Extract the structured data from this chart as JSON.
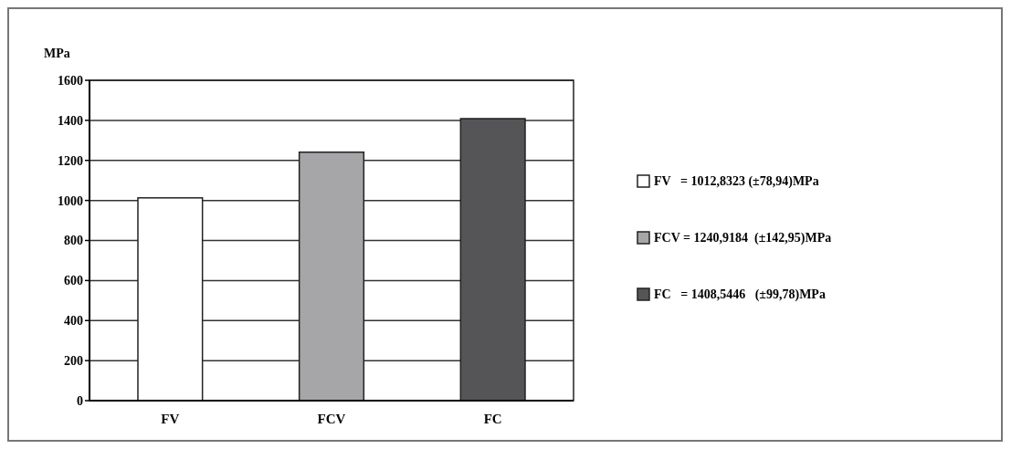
{
  "chart_data": {
    "type": "bar",
    "ylabel": "MPa",
    "categories": [
      "FV",
      "FCV",
      "FC"
    ],
    "series": [
      {
        "name": "FV   = 1012,8323 (±78,94)MPa",
        "color": "#ffffff",
        "values": [
          1012.8323,
          null,
          null
        ]
      },
      {
        "name": "FCV = 1240,9184  (±142,95)MPa",
        "color": "#a6a6a8",
        "values": [
          null,
          1240.9184,
          null
        ]
      },
      {
        "name": "FC   = 1408,5446   (±99,78)MPa",
        "color": "#555557",
        "values": [
          null,
          null,
          1408.5446
        ]
      }
    ],
    "ylim": [
      0,
      1600
    ],
    "yticks": [
      0,
      200,
      400,
      600,
      800,
      1000,
      1200,
      1400,
      1600
    ],
    "grid": "y",
    "legend": "right"
  }
}
